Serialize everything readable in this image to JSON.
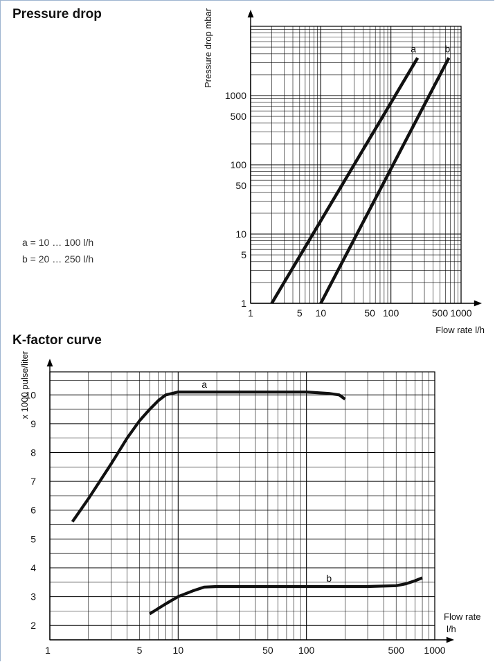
{
  "sections": {
    "pressure_title": "Pressure drop",
    "kfactor_title": "K-factor curve"
  },
  "legend": {
    "line_a": "a = 10 … 100 l/h",
    "line_b": "b = 20 … 250 l/h"
  },
  "chart_data": [
    {
      "type": "line",
      "title": "Pressure drop",
      "xlabel": "Flow rate l/h",
      "ylabel": "Pressure drop mbar",
      "xscale": "log",
      "yscale": "log",
      "xlim": [
        1,
        1000
      ],
      "ylim": [
        1,
        10000
      ],
      "grid": true,
      "x_tick_labels": [
        {
          "value": 1,
          "label": "1"
        },
        {
          "value": 5,
          "label": "5"
        },
        {
          "value": 10,
          "label": "10"
        },
        {
          "value": 50,
          "label": "50"
        },
        {
          "value": 100,
          "label": "100"
        },
        {
          "value": 500,
          "label": "500"
        },
        {
          "value": 1000,
          "label": "1000"
        }
      ],
      "y_tick_labels": [
        {
          "value": 1,
          "label": "1"
        },
        {
          "value": 5,
          "label": "5"
        },
        {
          "value": 10,
          "label": "10"
        },
        {
          "value": 50,
          "label": "50"
        },
        {
          "value": 100,
          "label": "100"
        },
        {
          "value": 500,
          "label": "500"
        },
        {
          "value": 1000,
          "label": "1000"
        }
      ],
      "series": [
        {
          "name": "a",
          "x": [
            2,
            240
          ],
          "y": [
            1,
            3500
          ]
        },
        {
          "name": "b",
          "x": [
            10,
            670
          ],
          "y": [
            1,
            3500
          ]
        }
      ]
    },
    {
      "type": "line",
      "title": "K-factor curve",
      "xlabel": "Flow rate l/h",
      "ylabel": "x 1000 pulse/liter",
      "xscale": "log",
      "xlim": [
        1,
        1000
      ],
      "ylim": [
        1.5,
        10.8
      ],
      "grid": true,
      "x_tick_labels": [
        {
          "value": 1,
          "label": "1"
        },
        {
          "value": 5,
          "label": "5"
        },
        {
          "value": 10,
          "label": "10"
        },
        {
          "value": 50,
          "label": "50"
        },
        {
          "value": 100,
          "label": "100"
        },
        {
          "value": 500,
          "label": "500"
        },
        {
          "value": 1000,
          "label": "1000"
        }
      ],
      "y_tick_labels": [
        {
          "value": 2,
          "label": "2"
        },
        {
          "value": 3,
          "label": "3"
        },
        {
          "value": 4,
          "label": "4"
        },
        {
          "value": 5,
          "label": "5"
        },
        {
          "value": 6,
          "label": "6"
        },
        {
          "value": 7,
          "label": "7"
        },
        {
          "value": 8,
          "label": "8"
        },
        {
          "value": 9,
          "label": "9"
        },
        {
          "value": 10,
          "label": "10"
        }
      ],
      "series": [
        {
          "name": "a",
          "x": [
            1.5,
            2,
            3,
            4,
            5,
            6,
            7,
            8,
            10,
            20,
            50,
            100,
            150,
            180,
            200
          ],
          "y": [
            5.6,
            6.4,
            7.6,
            8.5,
            9.1,
            9.5,
            9.8,
            10.0,
            10.1,
            10.1,
            10.1,
            10.1,
            10.05,
            10.0,
            9.85
          ]
        },
        {
          "name": "b",
          "x": [
            6,
            8,
            10,
            13,
            16,
            20,
            50,
            100,
            300,
            500,
            600,
            700,
            800
          ],
          "y": [
            2.4,
            2.75,
            3.0,
            3.2,
            3.33,
            3.35,
            3.35,
            3.35,
            3.35,
            3.38,
            3.45,
            3.55,
            3.65
          ]
        }
      ]
    }
  ]
}
